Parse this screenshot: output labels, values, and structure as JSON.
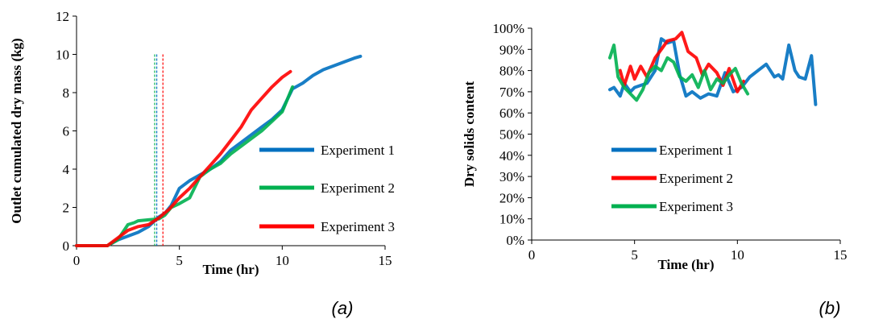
{
  "chart_data": [
    {
      "type": "line",
      "caption": "(a)",
      "xlabel": "Time (hr)",
      "ylabel": "Outlet cumulated dry mass (kg)",
      "xlim": [
        0,
        15
      ],
      "ylim": [
        0,
        12
      ],
      "xticks": [
        0,
        5,
        10,
        15
      ],
      "yticks": [
        0,
        2,
        4,
        6,
        8,
        10,
        12
      ],
      "grid": false,
      "legend_position": "right",
      "series": [
        {
          "name": "Experiment 1",
          "color": "#0070c0",
          "x": [
            0,
            1.5,
            2.0,
            2.5,
            3.0,
            3.5,
            4.0,
            4.3,
            4.6,
            5.0,
            5.5,
            6.0,
            6.5,
            7.0,
            7.5,
            8.0,
            8.5,
            9.0,
            9.5,
            10.0,
            10.5,
            11.0,
            11.5,
            12.0,
            12.5,
            13.0,
            13.5,
            13.8
          ],
          "y": [
            0,
            0,
            0.3,
            0.5,
            0.7,
            1.0,
            1.5,
            1.7,
            2.1,
            3.0,
            3.4,
            3.7,
            4.0,
            4.4,
            5.0,
            5.4,
            5.8,
            6.2,
            6.6,
            7.1,
            8.2,
            8.5,
            8.9,
            9.2,
            9.4,
            9.6,
            9.8,
            9.9
          ]
        },
        {
          "name": "Experiment 2",
          "color": "#00b050",
          "x": [
            0,
            1.5,
            2.0,
            2.5,
            2.8,
            3.0,
            3.5,
            4.0,
            4.3,
            4.6,
            5.0,
            5.5,
            6.0,
            6.5,
            7.0,
            7.5,
            8.0,
            8.5,
            9.0,
            9.5,
            10.0,
            10.5
          ],
          "y": [
            0,
            0,
            0.3,
            1.1,
            1.2,
            1.3,
            1.35,
            1.4,
            1.6,
            2.0,
            2.2,
            2.5,
            3.6,
            4.0,
            4.3,
            4.8,
            5.2,
            5.6,
            6.0,
            6.5,
            7.0,
            8.3
          ]
        },
        {
          "name": "Experiment 3",
          "color": "#ff0000",
          "x": [
            0,
            1.5,
            2.0,
            2.5,
            3.0,
            3.5,
            4.0,
            4.5,
            5.0,
            5.5,
            6.0,
            6.5,
            7.0,
            7.5,
            8.0,
            8.5,
            9.0,
            9.5,
            10.0,
            10.4
          ],
          "y": [
            0,
            0,
            0.4,
            0.8,
            1.0,
            1.1,
            1.45,
            1.9,
            2.5,
            3.0,
            3.6,
            4.2,
            4.8,
            5.5,
            6.2,
            7.1,
            7.7,
            8.3,
            8.8,
            9.1
          ]
        }
      ],
      "vlines": [
        {
          "x": 3.8,
          "color": "#00b050"
        },
        {
          "x": 3.9,
          "color": "#0070c0"
        },
        {
          "x": 4.2,
          "color": "#ff0000"
        }
      ]
    },
    {
      "type": "line",
      "caption": "(b)",
      "xlabel": "Time (hr)",
      "ylabel": "Dry solids content",
      "xlim": [
        0,
        15
      ],
      "ylim": [
        0,
        100
      ],
      "xticks": [
        0,
        5,
        10,
        15
      ],
      "yticks": [
        0,
        10,
        20,
        30,
        40,
        50,
        60,
        70,
        80,
        90,
        100
      ],
      "ytick_labels": [
        "0%",
        "10%",
        "20%",
        "30%",
        "40%",
        "50%",
        "60%",
        "70%",
        "80%",
        "90%",
        "100%"
      ],
      "grid": false,
      "legend_position": "center-left",
      "series": [
        {
          "name": "Experiment 1",
          "color": "#0070c0",
          "x": [
            3.8,
            4.0,
            4.3,
            4.5,
            4.8,
            5.0,
            5.3,
            5.6,
            6.0,
            6.3,
            6.6,
            6.9,
            7.2,
            7.5,
            7.8,
            8.2,
            8.6,
            9.0,
            9.4,
            9.8,
            10.2,
            10.6,
            11.0,
            11.4,
            11.8,
            12.0,
            12.2,
            12.5,
            12.8,
            13.0,
            13.3,
            13.6,
            13.8
          ],
          "y": [
            71,
            72,
            68,
            74,
            70,
            72,
            73,
            74,
            80,
            95,
            93,
            94,
            78,
            68,
            70,
            67,
            69,
            68,
            79,
            70,
            72,
            77,
            80,
            83,
            77,
            78,
            76,
            92,
            80,
            77,
            76,
            87,
            64
          ]
        },
        {
          "name": "Experiment 2",
          "color": "#ff0000",
          "x": [
            4.3,
            4.5,
            4.8,
            5.0,
            5.3,
            5.6,
            6.0,
            6.3,
            6.6,
            7.0,
            7.3,
            7.6,
            8.0,
            8.3,
            8.6,
            9.0,
            9.3,
            9.6,
            10.0,
            10.3
          ],
          "y": [
            80,
            73,
            82,
            76,
            82,
            77,
            86,
            90,
            94,
            95,
            98,
            89,
            86,
            78,
            83,
            79,
            73,
            81,
            70,
            75
          ]
        },
        {
          "name": "Experiment 3",
          "color": "#00b050",
          "x": [
            3.8,
            4.0,
            4.2,
            4.5,
            4.8,
            5.1,
            5.4,
            5.7,
            6.0,
            6.3,
            6.6,
            6.9,
            7.2,
            7.5,
            7.8,
            8.1,
            8.4,
            8.7,
            9.0,
            9.3,
            9.6,
            9.9,
            10.2,
            10.5
          ],
          "y": [
            86,
            92,
            77,
            72,
            69,
            66,
            71,
            79,
            82,
            80,
            86,
            84,
            77,
            75,
            78,
            72,
            80,
            71,
            76,
            74,
            78,
            81,
            74,
            69
          ]
        }
      ]
    }
  ]
}
